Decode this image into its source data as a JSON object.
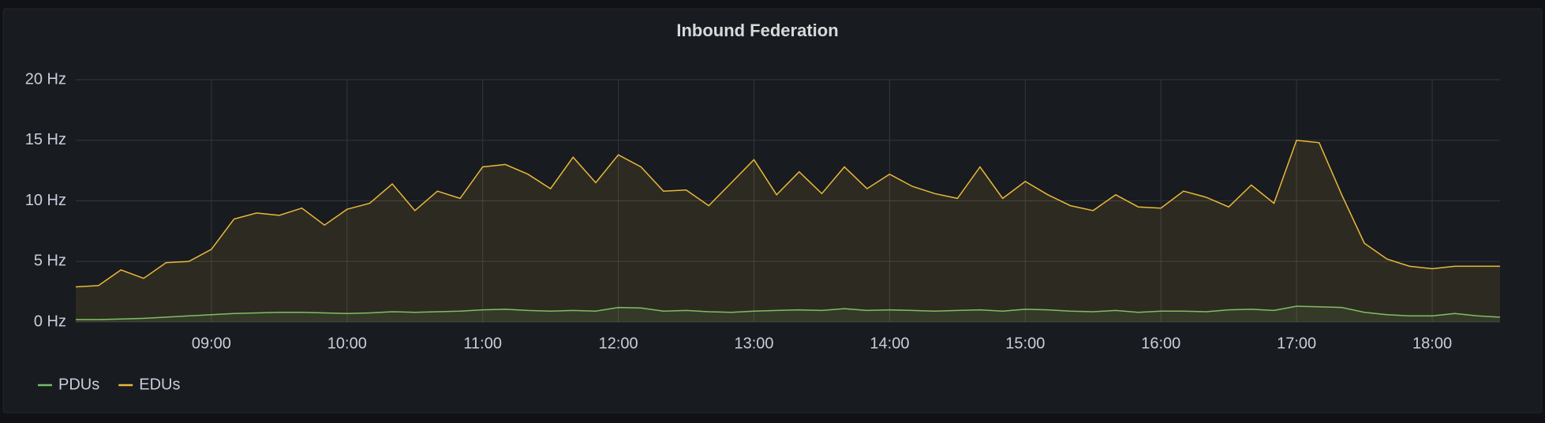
{
  "chart_data": {
    "type": "line",
    "title": "Inbound Federation",
    "x": [
      "08:00",
      "08:10",
      "08:20",
      "08:30",
      "08:40",
      "08:50",
      "09:00",
      "09:10",
      "09:20",
      "09:30",
      "09:40",
      "09:50",
      "10:00",
      "10:10",
      "10:20",
      "10:30",
      "10:40",
      "10:50",
      "11:00",
      "11:10",
      "11:20",
      "11:30",
      "11:40",
      "11:50",
      "12:00",
      "12:10",
      "12:20",
      "12:30",
      "12:40",
      "12:50",
      "13:00",
      "13:10",
      "13:20",
      "13:30",
      "13:40",
      "13:50",
      "14:00",
      "14:10",
      "14:20",
      "14:30",
      "14:40",
      "14:50",
      "15:00",
      "15:10",
      "15:20",
      "15:30",
      "15:40",
      "15:50",
      "16:00",
      "16:10",
      "16:20",
      "16:30",
      "16:40",
      "16:50",
      "17:00",
      "17:10",
      "17:20",
      "17:30",
      "17:40",
      "17:50",
      "18:00",
      "18:10",
      "18:20",
      "18:30"
    ],
    "series": [
      {
        "name": "PDUs",
        "color": "#73bf69",
        "values": [
          0.2,
          0.2,
          0.25,
          0.3,
          0.4,
          0.5,
          0.6,
          0.7,
          0.75,
          0.8,
          0.8,
          0.75,
          0.7,
          0.75,
          0.85,
          0.8,
          0.85,
          0.9,
          1.0,
          1.05,
          0.95,
          0.9,
          0.95,
          0.9,
          1.2,
          1.15,
          0.9,
          0.95,
          0.85,
          0.8,
          0.9,
          0.95,
          1.0,
          0.95,
          1.1,
          0.95,
          1.0,
          0.95,
          0.9,
          0.95,
          1.0,
          0.9,
          1.05,
          1.0,
          0.9,
          0.85,
          0.95,
          0.8,
          0.9,
          0.9,
          0.85,
          1.0,
          1.05,
          0.95,
          1.3,
          1.25,
          1.2,
          0.8,
          0.6,
          0.5,
          0.5,
          0.7,
          0.5,
          0.4
        ]
      },
      {
        "name": "EDUs",
        "color": "#eab839",
        "values": [
          2.9,
          3.0,
          4.3,
          3.6,
          4.9,
          5.0,
          6.0,
          8.5,
          9.0,
          8.8,
          9.4,
          8.0,
          9.3,
          9.8,
          11.4,
          9.2,
          10.8,
          10.2,
          12.8,
          13.0,
          12.2,
          11.0,
          13.6,
          11.5,
          13.8,
          12.8,
          10.8,
          10.9,
          9.6,
          11.5,
          13.4,
          10.5,
          12.4,
          10.6,
          12.8,
          11.0,
          12.2,
          11.2,
          10.6,
          10.2,
          12.8,
          10.2,
          11.6,
          10.5,
          9.6,
          9.2,
          10.5,
          9.5,
          9.4,
          10.8,
          10.3,
          9.5,
          11.3,
          9.8,
          15.0,
          14.8,
          10.5,
          6.5,
          5.2,
          4.6,
          4.4,
          4.6,
          4.6,
          4.6
        ]
      }
    ],
    "xlim": [
      "08:00",
      "18:30"
    ],
    "xticks": [
      "09:00",
      "10:00",
      "11:00",
      "12:00",
      "13:00",
      "14:00",
      "15:00",
      "16:00",
      "17:00",
      "18:00"
    ],
    "ylim": [
      0,
      20
    ],
    "yticks": [
      {
        "value": 0,
        "label": "0 Hz"
      },
      {
        "value": 5,
        "label": "5 Hz"
      },
      {
        "value": 10,
        "label": "10 Hz"
      },
      {
        "value": 15,
        "label": "15 Hz"
      },
      {
        "value": 20,
        "label": "20 Hz"
      }
    ],
    "grid": true
  }
}
